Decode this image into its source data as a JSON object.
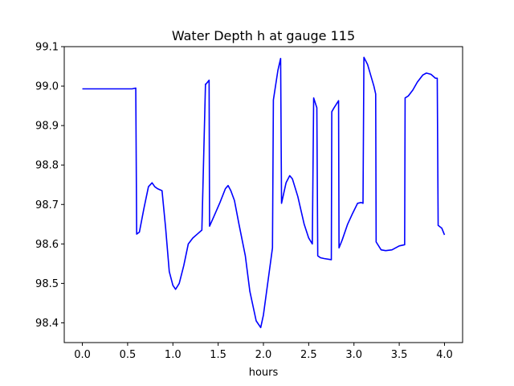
{
  "chart_data": {
    "type": "line",
    "title": "Water Depth h at gauge 115",
    "xlabel": "hours",
    "ylabel": "",
    "xlim": [
      -0.2,
      4.2
    ],
    "ylim": [
      98.35,
      99.1
    ],
    "xticks": [
      0.0,
      0.5,
      1.0,
      1.5,
      2.0,
      2.5,
      3.0,
      3.5,
      4.0
    ],
    "xtick_labels": [
      "0.0",
      "0.5",
      "1.0",
      "1.5",
      "2.0",
      "2.5",
      "3.0",
      "3.5",
      "4.0"
    ],
    "yticks": [
      98.4,
      98.5,
      98.6,
      98.7,
      98.8,
      98.9,
      99.0,
      99.1
    ],
    "ytick_labels": [
      "98.4",
      "98.5",
      "98.6",
      "98.7",
      "98.8",
      "98.9",
      "99.0",
      "99.1"
    ],
    "grid": false,
    "series": [
      {
        "color": "#0000ff",
        "x": [
          0.0,
          0.3,
          0.55,
          0.59,
          0.6,
          0.63,
          0.68,
          0.73,
          0.77,
          0.8,
          0.83,
          0.88,
          0.92,
          0.96,
          1.0,
          1.03,
          1.07,
          1.12,
          1.17,
          1.22,
          1.27,
          1.32,
          1.36,
          1.365,
          1.4,
          1.405,
          1.45,
          1.52,
          1.58,
          1.61,
          1.64,
          1.68,
          1.73,
          1.8,
          1.85,
          1.92,
          1.97,
          2.0,
          2.05,
          2.1,
          2.11,
          2.16,
          2.19,
          2.2,
          2.25,
          2.29,
          2.32,
          2.38,
          2.45,
          2.5,
          2.54,
          2.555,
          2.59,
          2.6,
          2.63,
          2.67,
          2.75,
          2.755,
          2.78,
          2.83,
          2.835,
          2.87,
          2.93,
          2.98,
          3.04,
          3.08,
          3.1,
          3.11,
          3.15,
          3.22,
          3.24,
          3.245,
          3.3,
          3.35,
          3.42,
          3.5,
          3.56,
          3.565,
          3.6,
          3.65,
          3.7,
          3.76,
          3.8,
          3.85,
          3.9,
          3.92,
          3.93,
          3.97,
          4.0
        ],
        "y": [
          98.993,
          98.993,
          98.993,
          98.995,
          98.625,
          98.63,
          98.69,
          98.745,
          98.755,
          98.745,
          98.74,
          98.735,
          98.64,
          98.53,
          98.495,
          98.485,
          98.5,
          98.545,
          98.6,
          98.615,
          98.625,
          98.635,
          99.005,
          99.005,
          99.015,
          98.645,
          98.668,
          98.705,
          98.74,
          98.748,
          98.735,
          98.71,
          98.65,
          98.57,
          98.48,
          98.405,
          98.388,
          98.42,
          98.505,
          98.59,
          98.965,
          99.04,
          99.07,
          98.703,
          98.755,
          98.773,
          98.765,
          98.72,
          98.65,
          98.615,
          98.6,
          98.97,
          98.945,
          98.57,
          98.565,
          98.563,
          98.56,
          98.935,
          98.945,
          98.963,
          98.59,
          98.61,
          98.65,
          98.675,
          98.703,
          98.705,
          98.703,
          99.073,
          99.055,
          99.0,
          98.98,
          98.605,
          98.585,
          98.583,
          98.585,
          98.595,
          98.598,
          98.97,
          98.975,
          98.99,
          99.01,
          99.028,
          99.033,
          99.03,
          99.02,
          99.02,
          98.647,
          98.64,
          98.623
        ]
      }
    ]
  }
}
